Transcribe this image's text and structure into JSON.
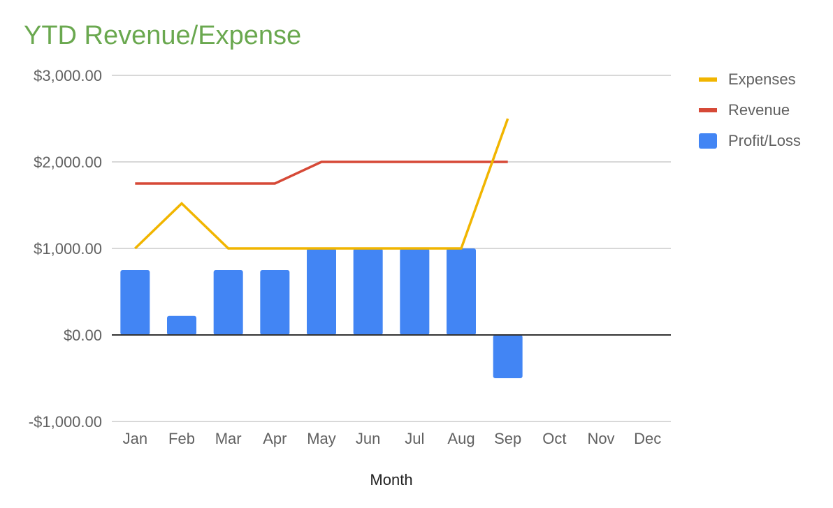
{
  "chart_data": {
    "type": "bar",
    "title": "YTD Revenue/Expense",
    "xlabel": "Month",
    "ylabel": "",
    "ylim": [
      -1000,
      3000
    ],
    "yticks": [
      3000,
      2000,
      1000,
      0,
      -1000
    ],
    "ytick_labels": [
      "$3,000.00",
      "$2,000.00",
      "$1,000.00",
      "$0.00",
      "-$1,000.00"
    ],
    "categories": [
      "Jan",
      "Feb",
      "Mar",
      "Apr",
      "May",
      "Jun",
      "Jul",
      "Aug",
      "Sep",
      "Oct",
      "Nov",
      "Dec"
    ],
    "series": [
      {
        "name": "Expenses",
        "type": "line",
        "color": "#f1b500",
        "values": [
          1000,
          1520,
          1000,
          1000,
          1000,
          1000,
          1000,
          1000,
          2500,
          null,
          null,
          null
        ]
      },
      {
        "name": "Revenue",
        "type": "line",
        "color": "#d64937",
        "values": [
          1750,
          1750,
          1750,
          1750,
          2000,
          2000,
          2000,
          2000,
          2000,
          null,
          null,
          null
        ]
      },
      {
        "name": "Profit/Loss",
        "type": "bar",
        "color": "#4285f4",
        "values": [
          750,
          220,
          750,
          750,
          1000,
          1000,
          1000,
          1000,
          -500,
          0,
          0,
          0
        ]
      }
    ],
    "grid": true,
    "legend_position": "right"
  }
}
